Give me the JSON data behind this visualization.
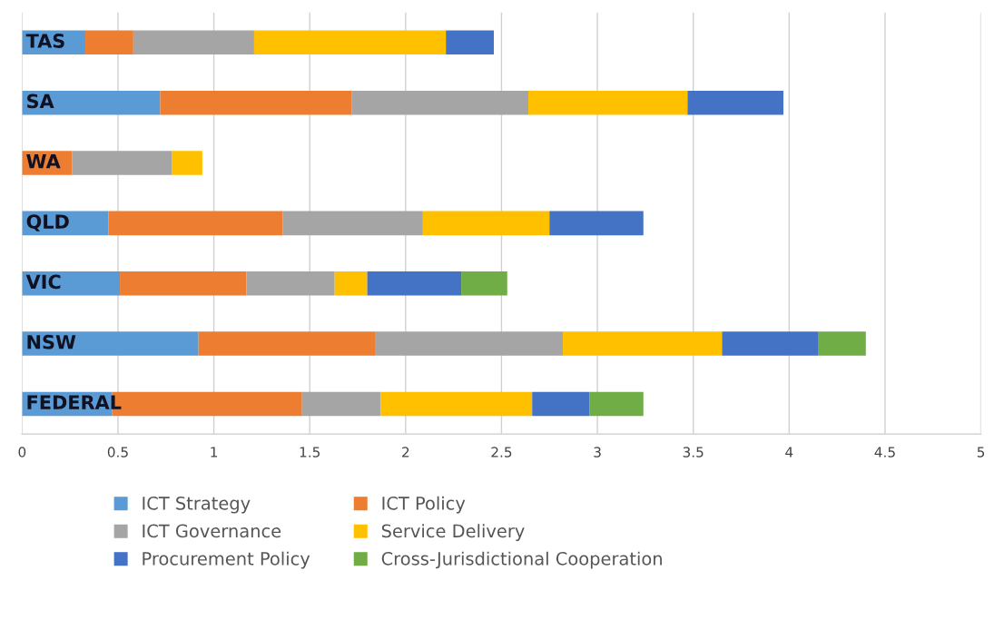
{
  "chart_data": {
    "type": "bar",
    "orientation": "horizontal",
    "stacked": true,
    "categories": [
      "TAS",
      "SA",
      "WA",
      "QLD",
      "VIC",
      "NSW",
      "FEDERAL"
    ],
    "series": [
      {
        "name": "ICT Strategy",
        "color": "#5b9bd5",
        "values": [
          0.33,
          0.72,
          0,
          0.45,
          0.51,
          0.92,
          0.47
        ]
      },
      {
        "name": "ICT Policy",
        "color": "#ed7d31",
        "values": [
          0.25,
          1.0,
          0.26,
          0.91,
          0.66,
          0.92,
          0.99
        ]
      },
      {
        "name": "ICT Governance",
        "color": "#a5a5a5",
        "values": [
          0.63,
          0.92,
          0.52,
          0.73,
          0.46,
          0.98,
          0.41
        ]
      },
      {
        "name": "Service Delivery",
        "color": "#ffc000",
        "values": [
          1.0,
          0.83,
          0.16,
          0.66,
          0.17,
          0.83,
          0.79
        ]
      },
      {
        "name": "Procurement Policy",
        "color": "#4472c4",
        "values": [
          0.25,
          0.5,
          0,
          0.49,
          0.49,
          0.5,
          0.3
        ]
      },
      {
        "name": "Cross-Jurisdictional Cooperation",
        "color": "#70ad47",
        "values": [
          0,
          0,
          0,
          0,
          0.24,
          0.25,
          0.28
        ]
      }
    ],
    "xlim": [
      0,
      5
    ],
    "xticks": [
      0,
      0.5,
      1,
      1.5,
      2,
      2.5,
      3,
      3.5,
      4,
      4.5,
      5
    ],
    "grid": "x",
    "legend": "bottom"
  }
}
